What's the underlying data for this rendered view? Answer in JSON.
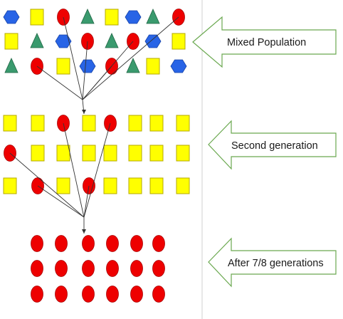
{
  "colors": {
    "yellow": "#ffff00",
    "yellow_stroke": "#b5a800",
    "red": "#ee0000",
    "red_stroke": "#a80000",
    "blue": "#2864e6",
    "blue_stroke": "#1844a8",
    "green": "#3a9a6e",
    "green_stroke": "#1f6644",
    "arrow_stroke": "#6aa84f",
    "divider": "#d0d0d0",
    "line": "#333333"
  },
  "labels": {
    "mixed": "Mixed Population",
    "second": "Second generation",
    "after": "After 7/8 generations"
  },
  "populations": {
    "mixed": [
      [
        "blue-hexagon",
        "yellow-square",
        "red-circle",
        "green-triangle",
        "yellow-square",
        "blue-hexagon",
        "green-triangle",
        "red-circle"
      ],
      [
        "yellow-square",
        "green-triangle",
        "blue-hexagon",
        "red-circle",
        "green-triangle",
        "red-circle",
        "blue-hexagon",
        "yellow-square"
      ],
      [
        "green-triangle",
        "red-circle",
        "yellow-square",
        "blue-hexagon",
        "red-circle",
        "green-triangle",
        "yellow-square",
        "blue-hexagon"
      ]
    ],
    "second": [
      [
        "yellow-square",
        "yellow-square",
        "red-circle",
        "yellow-square",
        "red-circle",
        "yellow-square",
        "yellow-square",
        "yellow-square"
      ],
      [
        "red-circle",
        "yellow-square",
        "yellow-square",
        "yellow-square",
        "yellow-square",
        "yellow-square",
        "yellow-square",
        "yellow-square"
      ],
      [
        "yellow-square",
        "red-circle",
        "yellow-square",
        "red-circle",
        "yellow-square",
        "yellow-square",
        "yellow-square",
        "yellow-square"
      ]
    ],
    "after": [
      [
        "red-circle",
        "red-circle",
        "red-circle",
        "red-circle",
        "red-circle",
        "red-circle"
      ],
      [
        "red-circle",
        "red-circle",
        "red-circle",
        "red-circle",
        "red-circle",
        "red-circle"
      ],
      [
        "red-circle",
        "red-circle",
        "red-circle",
        "red-circle",
        "red-circle",
        "red-circle"
      ]
    ]
  }
}
